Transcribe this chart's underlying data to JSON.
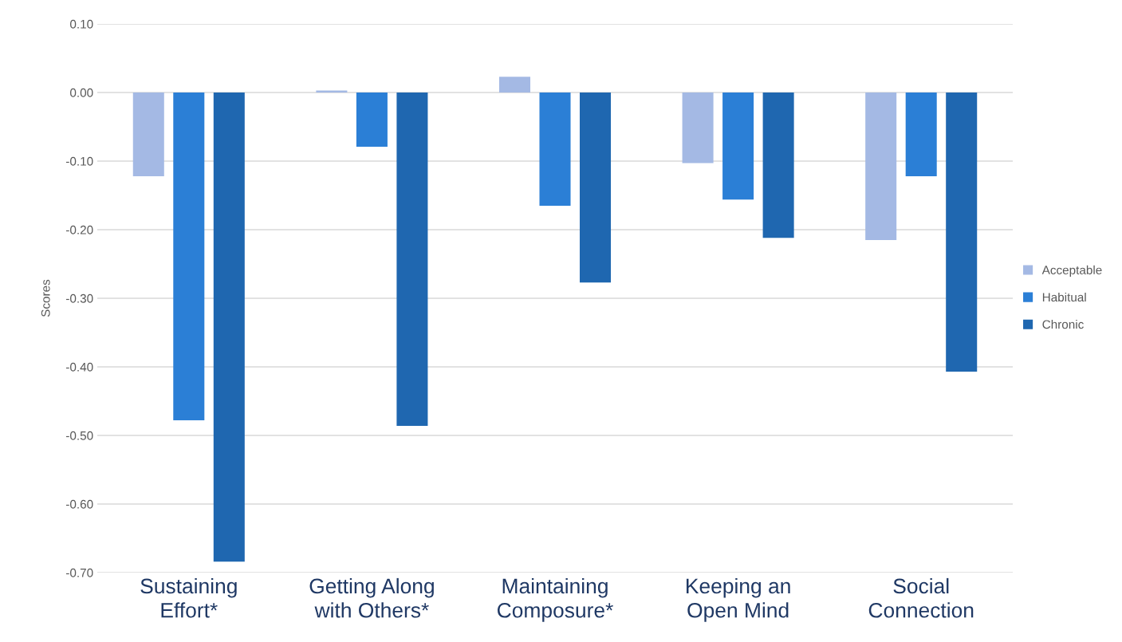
{
  "chart_data": {
    "type": "bar",
    "ylabel": "Scores",
    "categories": [
      "Sustaining\nEffort*",
      "Getting Along\nwith Others*",
      "Maintaining\nComposure*",
      "Keeping an\nOpen Mind",
      "Social\nConnection"
    ],
    "series": [
      {
        "name": "Acceptable",
        "color": "#a4b9e4",
        "values": [
          -0.122,
          0.003,
          0.023,
          -0.103,
          -0.215
        ]
      },
      {
        "name": "Habitual",
        "color": "#2b7fd6",
        "values": [
          -0.478,
          -0.079,
          -0.165,
          -0.156,
          -0.122
        ]
      },
      {
        "name": "Chronic",
        "color": "#1f67b0",
        "values": [
          -0.684,
          -0.486,
          -0.277,
          -0.212,
          -0.407
        ]
      }
    ],
    "ylim": [
      -0.7,
      0.1
    ],
    "yticks": [
      {
        "value": 0.1,
        "label": "0.10"
      },
      {
        "value": 0.0,
        "label": "0.00"
      },
      {
        "value": -0.1,
        "label": "-0.10"
      },
      {
        "value": -0.2,
        "label": "-0.20"
      },
      {
        "value": -0.3,
        "label": "-0.30"
      },
      {
        "value": -0.4,
        "label": "-0.40"
      },
      {
        "value": -0.5,
        "label": "-0.50"
      },
      {
        "value": -0.6,
        "label": "-0.60"
      },
      {
        "value": -0.7,
        "label": "-0.70"
      }
    ],
    "grid": "y",
    "legend": "right"
  }
}
